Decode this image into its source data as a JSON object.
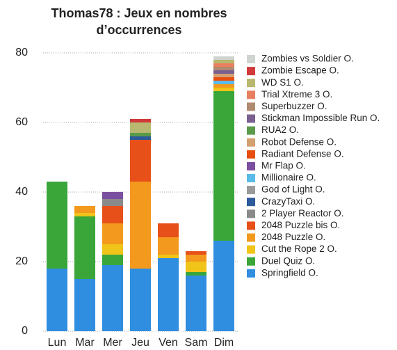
{
  "chart_data": {
    "type": "bar",
    "stacked": true,
    "title": [
      "Thomas78 : Jeux en nombres",
      "d’occurrences"
    ],
    "categories": [
      "Lun",
      "Mar",
      "Mer",
      "Jeu",
      "Ven",
      "Sam",
      "Dim"
    ],
    "ylim": [
      0,
      80
    ],
    "yticks": [
      0,
      20,
      40,
      60,
      80
    ],
    "grid": true,
    "legend": "right",
    "series": [
      {
        "name": "Springfield O.",
        "color": "#2f8ee0",
        "values": [
          18,
          15,
          19,
          18,
          21,
          16,
          26
        ]
      },
      {
        "name": "Duel Quiz O.",
        "color": "#3aa63a",
        "values": [
          25,
          18,
          3,
          0,
          0,
          1,
          43
        ]
      },
      {
        "name": "Cut the Rope 2 O.",
        "color": "#f0c419",
        "values": [
          0,
          1,
          3,
          0,
          1,
          3,
          1
        ]
      },
      {
        "name": "2048 Puzzle O.",
        "color": "#f39a1e",
        "values": [
          0,
          2,
          6,
          25,
          5,
          2,
          1
        ]
      },
      {
        "name": "2048 Puzzle bis O.",
        "color": "#e8501a",
        "values": [
          0,
          0,
          5,
          12,
          4,
          1,
          0
        ]
      },
      {
        "name": "2 Player Reactor O.",
        "color": "#8a8a8a",
        "values": [
          0,
          0,
          2,
          0,
          0,
          0,
          0
        ]
      },
      {
        "name": "CrazyTaxi O.",
        "color": "#2d5a9a",
        "values": [
          0,
          0,
          0,
          1,
          0,
          0,
          0
        ]
      },
      {
        "name": "God of Light O.",
        "color": "#9a9a9a",
        "values": [
          0,
          0,
          0,
          0,
          0,
          0,
          0
        ]
      },
      {
        "name": "Millionaire O.",
        "color": "#5bbbe8",
        "values": [
          0,
          0,
          0,
          0,
          0,
          0,
          1
        ]
      },
      {
        "name": "Mr Flap O.",
        "color": "#7b4fa0",
        "values": [
          0,
          0,
          2,
          0,
          0,
          0,
          0
        ]
      },
      {
        "name": "Radiant Defense O.",
        "color": "#e84e10",
        "values": [
          0,
          0,
          0,
          0,
          0,
          0,
          1
        ]
      },
      {
        "name": "Robot Defense O.",
        "color": "#d4a070",
        "values": [
          0,
          0,
          0,
          0,
          0,
          0,
          1
        ]
      },
      {
        "name": "RUA2 O.",
        "color": "#5a9a4a",
        "values": [
          0,
          0,
          0,
          1,
          0,
          0,
          0
        ]
      },
      {
        "name": "Stickman Impossible Run O.",
        "color": "#7a6090",
        "values": [
          0,
          0,
          0,
          0,
          0,
          0,
          1
        ]
      },
      {
        "name": "Superbuzzer O.",
        "color": "#b08a70",
        "values": [
          0,
          0,
          0,
          0,
          0,
          0,
          1
        ]
      },
      {
        "name": "Trial Xtreme 3 O.",
        "color": "#e88060",
        "values": [
          0,
          0,
          0,
          0,
          0,
          0,
          1
        ]
      },
      {
        "name": "WD S1 O.",
        "color": "#b8b870",
        "values": [
          0,
          0,
          0,
          3,
          0,
          0,
          1
        ]
      },
      {
        "name": "Zombie Escape O.",
        "color": "#d03a3a",
        "values": [
          0,
          0,
          0,
          1,
          0,
          0,
          0
        ]
      },
      {
        "name": "Zombies vs Soldier O.",
        "color": "#d0d4d0",
        "values": [
          0,
          0,
          0,
          0,
          0,
          0,
          1
        ]
      }
    ]
  }
}
